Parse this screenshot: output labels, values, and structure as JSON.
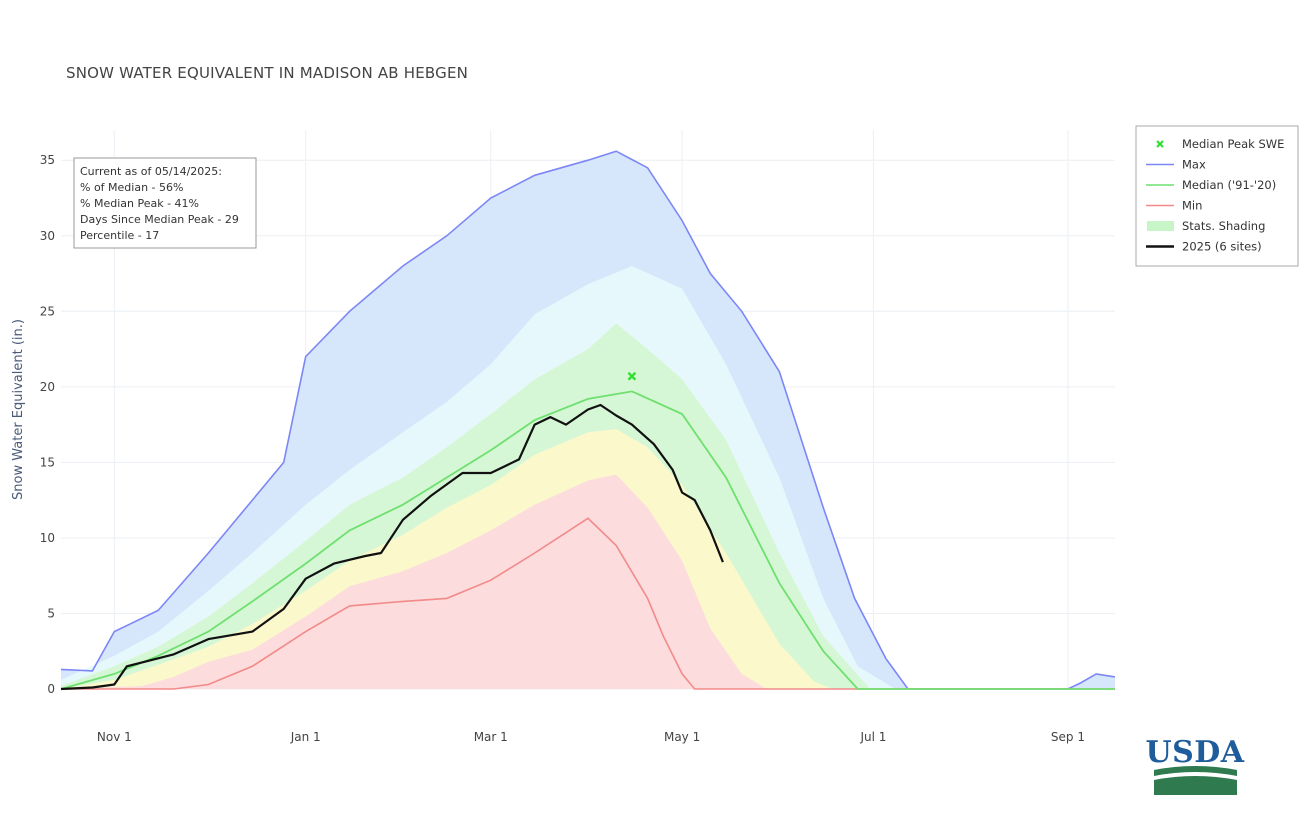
{
  "chart_data": {
    "type": "area",
    "title": "SNOW WATER EQUIVALENT IN MADISON AB HEBGEN",
    "ylabel": "Snow Water Equivalent (in.)",
    "xlabel": "",
    "x_range": [
      "2024-10-15",
      "2025-09-16"
    ],
    "ylim": [
      0,
      37
    ],
    "y_ticks": [
      0,
      5,
      10,
      15,
      20,
      25,
      30,
      35
    ],
    "x_ticks": [
      {
        "date": "2024-11-01",
        "label": "Nov 1"
      },
      {
        "date": "2025-01-01",
        "label": "Jan 1"
      },
      {
        "date": "2025-03-01",
        "label": "Mar 1"
      },
      {
        "date": "2025-05-01",
        "label": "May 1"
      },
      {
        "date": "2025-07-01",
        "label": "Jul 1"
      },
      {
        "date": "2025-09-01",
        "label": "Sep 1"
      }
    ],
    "grid": true,
    "legend_position": "top-right",
    "legend": [
      {
        "label": "Median Peak SWE",
        "kind": "marker",
        "color": "#33dd33"
      },
      {
        "label": "Max",
        "kind": "line",
        "color": "#7c87f5"
      },
      {
        "label": "Median ('91-'20)",
        "kind": "line",
        "color": "#6fe06f"
      },
      {
        "label": "Min",
        "kind": "line",
        "color": "#f28a8a"
      },
      {
        "label": "Stats. Shading",
        "kind": "fill",
        "color": "#c8f5c8"
      },
      {
        "label": "2025 (6 sites)",
        "kind": "line",
        "color": "#111111"
      }
    ],
    "info_box": [
      "Current as of 05/14/2025:",
      "% of Median - 56%",
      "% Median Peak - 41%",
      "Days Since Median Peak - 29",
      "Percentile - 17"
    ],
    "colors": {
      "max_fill": "#d6e6fb",
      "p90_fill": "#e6f8fb",
      "p70_fill": "#d6f7d6",
      "p50_fill": "#fbf8cc",
      "p30_fill": "#fcdcdc",
      "max_line": "#7c87f5",
      "median_line": "#6fe06f",
      "min_line": "#f28a8a",
      "current_line": "#111111",
      "peak_marker": "#33dd33"
    },
    "median_peak": {
      "date": "2025-04-15",
      "value": 20.7
    },
    "series": [
      {
        "name": "Max",
        "points": [
          [
            "2024-10-15",
            1.3
          ],
          [
            "2024-10-25",
            1.2
          ],
          [
            "2024-11-01",
            3.8
          ],
          [
            "2024-11-15",
            5.2
          ],
          [
            "2024-12-01",
            9.0
          ],
          [
            "2024-12-15",
            12.5
          ],
          [
            "2024-12-25",
            15.0
          ],
          [
            "2025-01-01",
            22.0
          ],
          [
            "2025-01-15",
            25.0
          ],
          [
            "2025-02-01",
            28.0
          ],
          [
            "2025-02-15",
            30.0
          ],
          [
            "2025-03-01",
            32.5
          ],
          [
            "2025-03-15",
            34.0
          ],
          [
            "2025-04-01",
            35.0
          ],
          [
            "2025-04-10",
            35.6
          ],
          [
            "2025-04-20",
            34.5
          ],
          [
            "2025-05-01",
            31.0
          ],
          [
            "2025-05-10",
            27.5
          ],
          [
            "2025-05-20",
            25.0
          ],
          [
            "2025-06-01",
            21.0
          ],
          [
            "2025-06-15",
            12.0
          ],
          [
            "2025-06-25",
            6.0
          ],
          [
            "2025-07-05",
            2.0
          ],
          [
            "2025-07-12",
            0.0
          ],
          [
            "2025-09-01",
            0.0
          ],
          [
            "2025-09-05",
            0.4
          ],
          [
            "2025-09-10",
            1.0
          ],
          [
            "2025-09-16",
            0.8
          ]
        ]
      },
      {
        "name": "Median ('91-'20)",
        "points": [
          [
            "2024-10-15",
            0.0
          ],
          [
            "2024-11-01",
            1.0
          ],
          [
            "2024-11-15",
            2.2
          ],
          [
            "2024-12-01",
            3.8
          ],
          [
            "2024-12-15",
            5.8
          ],
          [
            "2025-01-01",
            8.3
          ],
          [
            "2025-01-15",
            10.5
          ],
          [
            "2025-02-01",
            12.2
          ],
          [
            "2025-02-15",
            14.0
          ],
          [
            "2025-03-01",
            15.8
          ],
          [
            "2025-03-15",
            17.8
          ],
          [
            "2025-04-01",
            19.2
          ],
          [
            "2025-04-15",
            19.7
          ],
          [
            "2025-05-01",
            18.2
          ],
          [
            "2025-05-15",
            14.0
          ],
          [
            "2025-06-01",
            7.0
          ],
          [
            "2025-06-15",
            2.5
          ],
          [
            "2025-06-26",
            0.0
          ],
          [
            "2025-09-16",
            0.0
          ]
        ]
      },
      {
        "name": "Min",
        "points": [
          [
            "2024-10-15",
            0.0
          ],
          [
            "2024-11-20",
            0.0
          ],
          [
            "2024-12-01",
            0.3
          ],
          [
            "2024-12-15",
            1.5
          ],
          [
            "2025-01-01",
            3.8
          ],
          [
            "2025-01-15",
            5.5
          ],
          [
            "2025-02-01",
            5.8
          ],
          [
            "2025-02-15",
            6.0
          ],
          [
            "2025-03-01",
            7.2
          ],
          [
            "2025-03-15",
            9.0
          ],
          [
            "2025-04-01",
            11.3
          ],
          [
            "2025-04-10",
            9.5
          ],
          [
            "2025-04-20",
            6.0
          ],
          [
            "2025-04-25",
            3.5
          ],
          [
            "2025-05-01",
            1.0
          ],
          [
            "2025-05-05",
            0.0
          ],
          [
            "2025-09-16",
            0.0
          ]
        ]
      },
      {
        "name": "2025 (6 sites)",
        "points": [
          [
            "2024-10-15",
            0.0
          ],
          [
            "2024-10-25",
            0.1
          ],
          [
            "2024-11-01",
            0.3
          ],
          [
            "2024-11-05",
            1.5
          ],
          [
            "2024-11-20",
            2.3
          ],
          [
            "2024-12-01",
            3.3
          ],
          [
            "2024-12-15",
            3.8
          ],
          [
            "2024-12-25",
            5.3
          ],
          [
            "2025-01-01",
            7.3
          ],
          [
            "2025-01-10",
            8.3
          ],
          [
            "2025-01-20",
            8.8
          ],
          [
            "2025-01-25",
            9.0
          ],
          [
            "2025-02-01",
            11.2
          ],
          [
            "2025-02-10",
            12.8
          ],
          [
            "2025-02-20",
            14.3
          ],
          [
            "2025-03-01",
            14.3
          ],
          [
            "2025-03-10",
            15.2
          ],
          [
            "2025-03-15",
            17.5
          ],
          [
            "2025-03-20",
            18.0
          ],
          [
            "2025-03-25",
            17.5
          ],
          [
            "2025-04-01",
            18.5
          ],
          [
            "2025-04-05",
            18.8
          ],
          [
            "2025-04-10",
            18.1
          ],
          [
            "2025-04-15",
            17.5
          ],
          [
            "2025-04-22",
            16.2
          ],
          [
            "2025-04-28",
            14.5
          ],
          [
            "2025-05-01",
            13.0
          ],
          [
            "2025-05-05",
            12.5
          ],
          [
            "2025-05-10",
            10.5
          ],
          [
            "2025-05-14",
            8.4
          ]
        ]
      }
    ],
    "percentile_bands": {
      "p90": [
        [
          "2024-10-15",
          0.6
        ],
        [
          "2024-11-01",
          2.2
        ],
        [
          "2024-11-15",
          3.8
        ],
        [
          "2024-12-01",
          6.5
        ],
        [
          "2024-12-15",
          9.0
        ],
        [
          "2025-01-01",
          12.2
        ],
        [
          "2025-01-15",
          14.5
        ],
        [
          "2025-02-01",
          17.0
        ],
        [
          "2025-02-15",
          19.0
        ],
        [
          "2025-03-01",
          21.5
        ],
        [
          "2025-03-15",
          24.8
        ],
        [
          "2025-04-01",
          26.8
        ],
        [
          "2025-04-15",
          28.0
        ],
        [
          "2025-05-01",
          26.5
        ],
        [
          "2025-05-15",
          21.5
        ],
        [
          "2025-06-01",
          14.0
        ],
        [
          "2025-06-15",
          6.0
        ],
        [
          "2025-06-26",
          1.5
        ],
        [
          "2025-07-08",
          0.0
        ],
        [
          "2025-09-16",
          0.0
        ]
      ],
      "p70": [
        [
          "2024-10-15",
          0.2
        ],
        [
          "2024-11-01",
          1.5
        ],
        [
          "2024-11-15",
          2.8
        ],
        [
          "2024-12-01",
          4.8
        ],
        [
          "2024-12-15",
          7.0
        ],
        [
          "2025-01-01",
          9.8
        ],
        [
          "2025-01-15",
          12.2
        ],
        [
          "2025-02-01",
          14.0
        ],
        [
          "2025-02-15",
          16.0
        ],
        [
          "2025-03-01",
          18.2
        ],
        [
          "2025-03-15",
          20.5
        ],
        [
          "2025-04-01",
          22.5
        ],
        [
          "2025-04-10",
          24.2
        ],
        [
          "2025-04-20",
          22.5
        ],
        [
          "2025-05-01",
          20.5
        ],
        [
          "2025-05-15",
          16.5
        ],
        [
          "2025-06-01",
          9.0
        ],
        [
          "2025-06-15",
          3.5
        ],
        [
          "2025-06-30",
          0.0
        ],
        [
          "2025-09-16",
          0.0
        ]
      ],
      "p50": [
        [
          "2024-10-15",
          0.0
        ],
        [
          "2024-11-01",
          0.6
        ],
        [
          "2024-11-15",
          1.6
        ],
        [
          "2024-12-01",
          2.8
        ],
        [
          "2024-12-15",
          4.3
        ],
        [
          "2025-01-01",
          6.5
        ],
        [
          "2025-01-15",
          8.5
        ],
        [
          "2025-02-01",
          10.2
        ],
        [
          "2025-02-15",
          12.0
        ],
        [
          "2025-03-01",
          13.5
        ],
        [
          "2025-03-15",
          15.5
        ],
        [
          "2025-04-01",
          17.0
        ],
        [
          "2025-04-10",
          17.2
        ],
        [
          "2025-04-20",
          16.0
        ],
        [
          "2025-05-01",
          13.5
        ],
        [
          "2025-05-15",
          9.0
        ],
        [
          "2025-06-01",
          3.0
        ],
        [
          "2025-06-12",
          0.5
        ],
        [
          "2025-06-18",
          0.0
        ],
        [
          "2025-09-16",
          0.0
        ]
      ],
      "p30": [
        [
          "2024-10-15",
          0.0
        ],
        [
          "2024-11-10",
          0.2
        ],
        [
          "2024-11-20",
          0.8
        ],
        [
          "2024-12-01",
          1.8
        ],
        [
          "2024-12-15",
          2.6
        ],
        [
          "2025-01-01",
          4.8
        ],
        [
          "2025-01-15",
          6.8
        ],
        [
          "2025-02-01",
          7.8
        ],
        [
          "2025-02-15",
          9.0
        ],
        [
          "2025-03-01",
          10.5
        ],
        [
          "2025-03-15",
          12.2
        ],
        [
          "2025-04-01",
          13.8
        ],
        [
          "2025-04-10",
          14.2
        ],
        [
          "2025-04-20",
          12.0
        ],
        [
          "2025-05-01",
          8.5
        ],
        [
          "2025-05-10",
          4.0
        ],
        [
          "2025-05-20",
          1.0
        ],
        [
          "2025-05-28",
          0.0
        ],
        [
          "2025-09-16",
          0.0
        ]
      ]
    }
  },
  "logo": {
    "text": "USDA"
  }
}
